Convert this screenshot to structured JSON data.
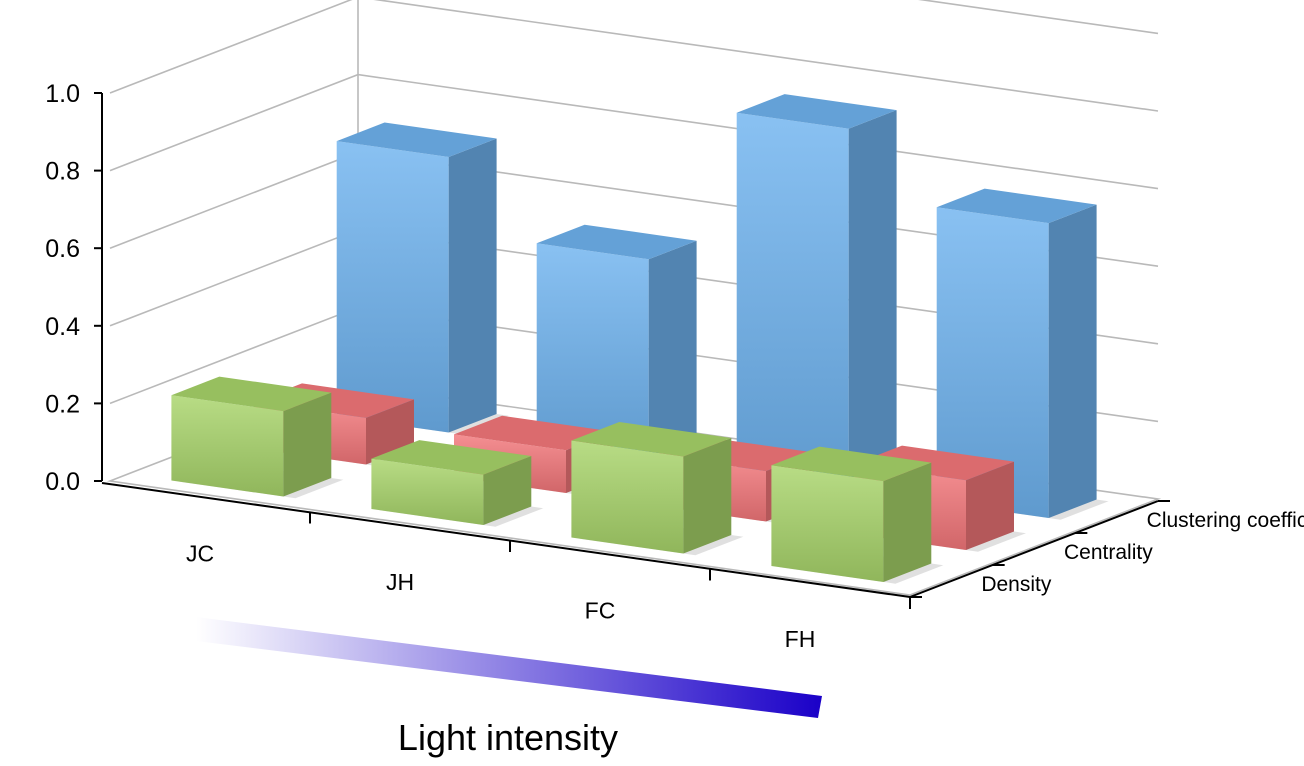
{
  "chart_data": {
    "type": "bar",
    "projection": "3d",
    "categories": [
      "JC",
      "JH",
      "FC",
      "FH"
    ],
    "series": [
      {
        "name": "Density",
        "values": [
          0.22,
          0.13,
          0.25,
          0.26
        ]
      },
      {
        "name": "Centrality",
        "values": [
          0.12,
          0.11,
          0.13,
          0.18
        ]
      },
      {
        "name": "Clustering coefficient",
        "values": [
          0.71,
          0.52,
          0.93,
          0.76
        ]
      }
    ],
    "yticks": [
      "0.0",
      "0.2",
      "0.4",
      "0.6",
      "0.8",
      "1.0"
    ],
    "ylim": [
      0,
      1.0
    ],
    "grid": true,
    "colors": {
      "Density": "#a8d46a",
      "Centrality": "#f3777a",
      "Clustering coefficient": "#6fb3ef"
    },
    "gradient": {
      "label": "Light intensity",
      "start_color": "#ffffff",
      "end_color": "#1a00c8"
    }
  }
}
